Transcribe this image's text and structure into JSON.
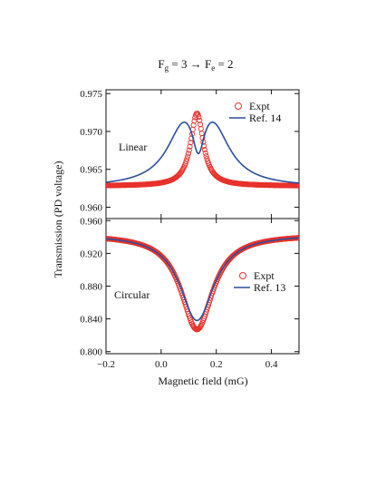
{
  "figure": {
    "title": {
      "g": "g",
      "left": "F",
      "mid": " = 3  →  F",
      "e": "e",
      "right": " = 2"
    },
    "ylabel": "Transmission (PD voltage)",
    "xlabel": "Magnetic field (mG)"
  },
  "colors": {
    "expt": "#e8312b",
    "model": "#2b4f9e",
    "axis": "#111111"
  },
  "chart_data": [
    {
      "type": "scatter",
      "panel": "top",
      "annotation": "Linear",
      "xlim": [
        -0.2,
        0.5
      ],
      "ylim": [
        0.9585,
        0.9755
      ],
      "yticks": [
        0.96,
        0.965,
        0.97,
        0.975
      ],
      "ytick_labels": [
        "0.960",
        "0.965",
        "0.970",
        "0.975"
      ],
      "legend_position": "top-right",
      "series": [
        {
          "name": "Expt",
          "kind": "markers",
          "model": {
            "base": 0.9628,
            "peaks": [
              {
                "c": 0.13,
                "a": 0.0096,
                "w": 0.028
              }
            ]
          }
        },
        {
          "name": "Ref. 14",
          "kind": "line",
          "model": {
            "base": 0.9626,
            "peaks": [
              {
                "c": 0.085,
                "a": 0.0072,
                "w": 0.075
              },
              {
                "c": 0.185,
                "a": 0.0072,
                "w": 0.075
              },
              {
                "c": 0.135,
                "a": -0.0055,
                "w": 0.026
              }
            ]
          }
        }
      ]
    },
    {
      "type": "scatter",
      "panel": "bottom",
      "annotation": "Circular",
      "xlim": [
        -0.2,
        0.5
      ],
      "ylim": [
        0.7975,
        0.9625
      ],
      "yticks": [
        0.8,
        0.84,
        0.88,
        0.92,
        0.96
      ],
      "ytick_labels": [
        "0.800",
        "0.840",
        "0.880",
        "0.920",
        "0.960"
      ],
      "xticks": [
        -0.2,
        0.0,
        0.2,
        0.4
      ],
      "xtick_labels": [
        "−0.2",
        "0.0",
        "0.2",
        "0.4"
      ],
      "legend_position": "center-right",
      "series": [
        {
          "name": "Expt",
          "kind": "markers",
          "model": {
            "base": 0.943,
            "peaks": [
              {
                "c": 0.13,
                "a": -0.116,
                "w": 0.07
              }
            ]
          }
        },
        {
          "name": "Ref. 13",
          "kind": "line",
          "model": {
            "base": 0.943,
            "peaks": [
              {
                "c": 0.13,
                "a": -0.105,
                "w": 0.075
              }
            ]
          }
        }
      ]
    }
  ]
}
